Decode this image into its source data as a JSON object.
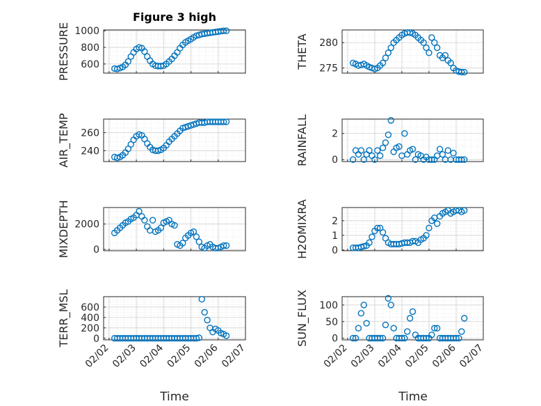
{
  "figure": {
    "title": "Figure 3 high",
    "xlabel": "Time",
    "x_tick_labels": [
      "02/02",
      "02/03",
      "02/04",
      "02/05",
      "02/06",
      "02/07"
    ],
    "marker_color": "#0072bd"
  },
  "chart_data": [
    {
      "type": "scatter",
      "ylabel": "PRESSURE",
      "ylim": [
        490,
        1010
      ],
      "yticks": [
        600,
        800,
        1000
      ],
      "x": [
        2.2,
        2.3,
        2.4,
        2.5,
        2.6,
        2.7,
        2.8,
        2.9,
        3.0,
        3.1,
        3.2,
        3.3,
        3.4,
        3.5,
        3.6,
        3.7,
        3.8,
        3.9,
        4.0,
        4.1,
        4.2,
        4.3,
        4.4,
        4.5,
        4.6,
        4.7,
        4.8,
        4.9,
        5.0,
        5.1,
        5.2,
        5.3,
        5.4,
        5.5,
        5.6,
        5.7,
        5.8,
        5.9,
        6.0,
        6.1,
        6.2,
        6.3
      ],
      "y": [
        545,
        540,
        550,
        565,
        590,
        630,
        690,
        740,
        780,
        800,
        790,
        750,
        690,
        640,
        600,
        580,
        575,
        575,
        580,
        600,
        630,
        660,
        700,
        740,
        790,
        830,
        860,
        880,
        900,
        920,
        940,
        950,
        960,
        965,
        970,
        975,
        980,
        985,
        990,
        995,
        1000,
        1000
      ]
    },
    {
      "type": "scatter",
      "ylabel": "THETA",
      "ylim": [
        274,
        282.5
      ],
      "yticks": [
        275,
        280
      ],
      "x": [
        2.2,
        2.3,
        2.4,
        2.5,
        2.6,
        2.7,
        2.8,
        2.9,
        3.0,
        3.1,
        3.2,
        3.3,
        3.4,
        3.5,
        3.6,
        3.7,
        3.8,
        3.9,
        4.0,
        4.1,
        4.2,
        4.3,
        4.4,
        4.5,
        4.6,
        4.7,
        4.8,
        4.9,
        5.0,
        5.1,
        5.2,
        5.3,
        5.4,
        5.5,
        5.6,
        5.7,
        5.8,
        5.9,
        6.0,
        6.1,
        6.2,
        6.3
      ],
      "y": [
        276,
        275.8,
        275.5,
        275.6,
        275.8,
        275.5,
        275.2,
        275.0,
        274.8,
        275.0,
        275.5,
        276.0,
        277,
        278,
        279,
        280,
        280.5,
        281,
        281.5,
        281.8,
        282,
        282,
        281.8,
        281.5,
        281,
        280.5,
        280,
        279,
        278,
        281,
        280,
        279,
        277.5,
        277,
        277.5,
        276.5,
        276,
        275,
        274.5,
        274.3,
        274.2,
        274.2
      ]
    },
    {
      "type": "scatter",
      "ylabel": "AIR_TEMP",
      "ylim": [
        228,
        275
      ],
      "yticks": [
        240,
        260
      ],
      "x": [
        2.2,
        2.3,
        2.4,
        2.5,
        2.6,
        2.7,
        2.8,
        2.9,
        3.0,
        3.1,
        3.2,
        3.3,
        3.4,
        3.5,
        3.6,
        3.7,
        3.8,
        3.9,
        4.0,
        4.1,
        4.2,
        4.3,
        4.4,
        4.5,
        4.6,
        4.7,
        4.8,
        4.9,
        5.0,
        5.1,
        5.2,
        5.3,
        5.4,
        5.5,
        5.6,
        5.7,
        5.8,
        5.9,
        6.0,
        6.1,
        6.2,
        6.3
      ],
      "y": [
        233,
        232,
        233,
        235,
        238,
        242,
        247,
        252,
        256,
        258,
        257,
        253,
        248,
        244,
        241,
        240,
        240,
        241,
        243,
        246,
        250,
        253,
        256,
        259,
        262,
        265,
        266,
        267,
        268,
        269,
        270,
        271,
        271,
        271,
        272,
        272,
        272,
        272,
        272,
        272,
        272,
        272
      ]
    },
    {
      "type": "scatter",
      "ylabel": "RAINFALL",
      "ylim": [
        -0.15,
        3.1
      ],
      "yticks": [
        0,
        2
      ],
      "x": [
        2.2,
        2.3,
        2.4,
        2.5,
        2.6,
        2.7,
        2.8,
        2.9,
        3.0,
        3.1,
        3.2,
        3.3,
        3.4,
        3.5,
        3.6,
        3.7,
        3.8,
        3.9,
        4.0,
        4.1,
        4.2,
        4.3,
        4.4,
        4.5,
        4.6,
        4.7,
        4.8,
        4.9,
        5.0,
        5.1,
        5.2,
        5.3,
        5.4,
        5.5,
        5.6,
        5.7,
        5.8,
        5.9,
        6.0,
        6.1,
        6.2,
        6.3
      ],
      "y": [
        0,
        0.7,
        0.4,
        0.7,
        0,
        0.4,
        0.7,
        0.3,
        0,
        0.7,
        0.3,
        0.9,
        1.3,
        1.9,
        3.0,
        0.6,
        0.9,
        1.0,
        0.3,
        2.0,
        0.4,
        0.7,
        0.8,
        0,
        0.4,
        0.3,
        0,
        0.2,
        0,
        0,
        0,
        0.3,
        0.8,
        0.4,
        0,
        0.7,
        0,
        0.5,
        0,
        0,
        0,
        0
      ]
    },
    {
      "type": "scatter",
      "ylabel": "MIXDEPTH",
      "ylim": [
        -100,
        3300
      ],
      "yticks": [
        0,
        2000
      ],
      "x": [
        2.2,
        2.3,
        2.4,
        2.5,
        2.6,
        2.7,
        2.8,
        2.9,
        3.0,
        3.1,
        3.2,
        3.3,
        3.4,
        3.5,
        3.6,
        3.7,
        3.8,
        3.9,
        4.0,
        4.1,
        4.2,
        4.3,
        4.4,
        4.5,
        4.6,
        4.7,
        4.8,
        4.9,
        5.0,
        5.1,
        5.2,
        5.3,
        5.4,
        5.5,
        5.6,
        5.7,
        5.8,
        5.9,
        6.0,
        6.1,
        6.2,
        6.3
      ],
      "y": [
        1300,
        1500,
        1700,
        1900,
        2100,
        2200,
        2400,
        2500,
        2700,
        3000,
        2600,
        2300,
        1800,
        1500,
        2300,
        1400,
        1500,
        1700,
        2100,
        2200,
        2300,
        2000,
        1900,
        400,
        300,
        500,
        900,
        1100,
        1300,
        1400,
        1000,
        600,
        200,
        100,
        300,
        400,
        200,
        100,
        100,
        200,
        300,
        300
      ]
    },
    {
      "type": "scatter",
      "ylabel": "H2OMIXRA",
      "ylim": [
        -0.05,
        2.9
      ],
      "yticks": [
        0,
        1,
        2
      ],
      "x": [
        2.2,
        2.3,
        2.4,
        2.5,
        2.6,
        2.7,
        2.8,
        2.9,
        3.0,
        3.1,
        3.2,
        3.3,
        3.4,
        3.5,
        3.6,
        3.7,
        3.8,
        3.9,
        4.0,
        4.1,
        4.2,
        4.3,
        4.4,
        4.5,
        4.6,
        4.7,
        4.8,
        4.9,
        5.0,
        5.1,
        5.2,
        5.3,
        5.4,
        5.5,
        5.6,
        5.7,
        5.8,
        5.9,
        6.0,
        6.1,
        6.2,
        6.3
      ],
      "y": [
        0.15,
        0.15,
        0.15,
        0.2,
        0.25,
        0.3,
        0.5,
        0.9,
        1.3,
        1.5,
        1.5,
        1.2,
        0.8,
        0.5,
        0.4,
        0.4,
        0.4,
        0.4,
        0.45,
        0.5,
        0.5,
        0.5,
        0.6,
        0.6,
        0.5,
        0.7,
        0.8,
        1.0,
        1.5,
        2.0,
        2.2,
        1.8,
        2.3,
        2.5,
        2.6,
        2.7,
        2.5,
        2.6,
        2.7,
        2.7,
        2.6,
        2.7
      ]
    },
    {
      "type": "scatter",
      "ylabel": "TERR_MSL",
      "ylim": [
        -30,
        800
      ],
      "yticks": [
        0,
        200,
        400,
        600
      ],
      "x": [
        2.2,
        2.3,
        2.4,
        2.5,
        2.6,
        2.7,
        2.8,
        2.9,
        3.0,
        3.1,
        3.2,
        3.3,
        3.4,
        3.5,
        3.6,
        3.7,
        3.8,
        3.9,
        4.0,
        4.1,
        4.2,
        4.3,
        4.4,
        4.5,
        4.6,
        4.7,
        4.8,
        4.9,
        5.0,
        5.1,
        5.2,
        5.3,
        5.4,
        5.5,
        5.6,
        5.7,
        5.8,
        5.9,
        6.0,
        6.1,
        6.2,
        6.3
      ],
      "y": [
        0,
        0,
        0,
        0,
        0,
        0,
        0,
        0,
        0,
        0,
        0,
        0,
        0,
        0,
        0,
        0,
        0,
        0,
        0,
        0,
        0,
        0,
        0,
        0,
        0,
        0,
        0,
        0,
        0,
        0,
        0,
        10,
        750,
        500,
        350,
        200,
        120,
        180,
        150,
        100,
        80,
        50
      ]
    },
    {
      "type": "scatter",
      "ylabel": "SUN_FLUX",
      "ylim": [
        -5,
        125
      ],
      "yticks": [
        0,
        50,
        100
      ],
      "x": [
        2.2,
        2.3,
        2.4,
        2.5,
        2.6,
        2.7,
        2.8,
        2.9,
        3.0,
        3.1,
        3.2,
        3.3,
        3.4,
        3.5,
        3.6,
        3.7,
        3.8,
        3.9,
        4.0,
        4.1,
        4.2,
        4.3,
        4.4,
        4.5,
        4.6,
        4.7,
        4.8,
        4.9,
        5.0,
        5.1,
        5.2,
        5.3,
        5.4,
        5.5,
        5.6,
        5.7,
        5.8,
        5.9,
        6.0,
        6.1,
        6.2,
        6.3
      ],
      "y": [
        0,
        0,
        30,
        75,
        100,
        45,
        0,
        0,
        0,
        0,
        0,
        0,
        40,
        120,
        100,
        30,
        0,
        0,
        0,
        0,
        20,
        60,
        80,
        10,
        0,
        0,
        0,
        0,
        0,
        10,
        30,
        30,
        0,
        0,
        0,
        0,
        0,
        0,
        0,
        0,
        20,
        60
      ]
    }
  ]
}
